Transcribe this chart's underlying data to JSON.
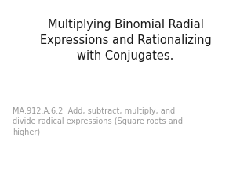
{
  "background_color": "#ffffff",
  "title_line1": "Multiplying Binomial Radial",
  "title_line2": "Expressions and Rationalizing",
  "title_line3": "with Conjugates.",
  "title_color": "#1a1a1a",
  "title_fontsize": 10.5,
  "title_fontweight": "normal",
  "subtitle_line1": "MA.912.A.6.2  Add, subtract, multiply, and",
  "subtitle_line2": "divide radical expressions (Square roots and",
  "subtitle_line3": "higher)",
  "subtitle_color": "#999999",
  "subtitle_fontsize": 7.0
}
